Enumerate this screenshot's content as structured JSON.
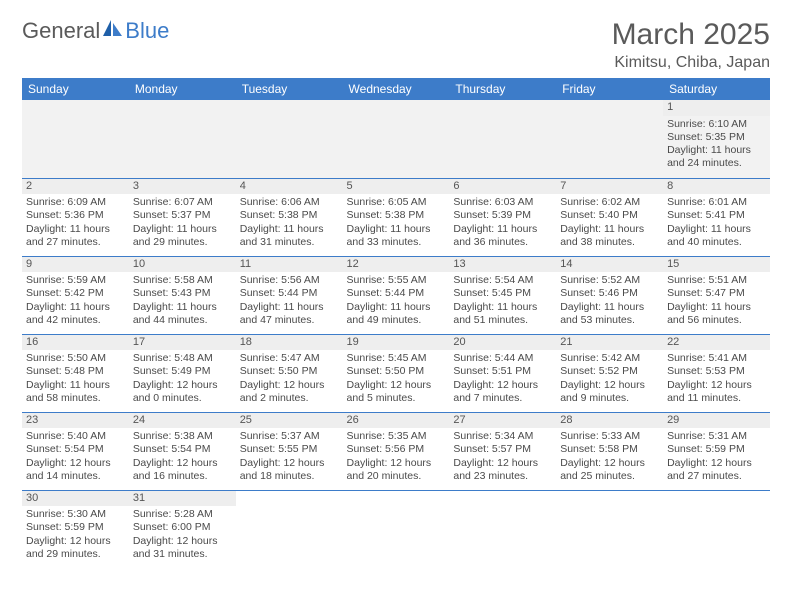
{
  "brand": {
    "word1": "General",
    "word2": "Blue",
    "sail_color": "#1f5fa8"
  },
  "title": "March 2025",
  "location": "Kimitsu, Chiba, Japan",
  "colors": {
    "header_bg": "#3d7cc9",
    "header_fg": "#ffffff",
    "rule": "#3d7cc9",
    "daynum_bg": "#eeeeee",
    "text": "#4a4a4a"
  },
  "weekdays": [
    "Sunday",
    "Monday",
    "Tuesday",
    "Wednesday",
    "Thursday",
    "Friday",
    "Saturday"
  ],
  "first_weekday_index": 6,
  "days": [
    {
      "n": 1,
      "sunrise": "6:10 AM",
      "sunset": "5:35 PM",
      "dl_h": 11,
      "dl_m": 24
    },
    {
      "n": 2,
      "sunrise": "6:09 AM",
      "sunset": "5:36 PM",
      "dl_h": 11,
      "dl_m": 27
    },
    {
      "n": 3,
      "sunrise": "6:07 AM",
      "sunset": "5:37 PM",
      "dl_h": 11,
      "dl_m": 29
    },
    {
      "n": 4,
      "sunrise": "6:06 AM",
      "sunset": "5:38 PM",
      "dl_h": 11,
      "dl_m": 31
    },
    {
      "n": 5,
      "sunrise": "6:05 AM",
      "sunset": "5:38 PM",
      "dl_h": 11,
      "dl_m": 33
    },
    {
      "n": 6,
      "sunrise": "6:03 AM",
      "sunset": "5:39 PM",
      "dl_h": 11,
      "dl_m": 36
    },
    {
      "n": 7,
      "sunrise": "6:02 AM",
      "sunset": "5:40 PM",
      "dl_h": 11,
      "dl_m": 38
    },
    {
      "n": 8,
      "sunrise": "6:01 AM",
      "sunset": "5:41 PM",
      "dl_h": 11,
      "dl_m": 40
    },
    {
      "n": 9,
      "sunrise": "5:59 AM",
      "sunset": "5:42 PM",
      "dl_h": 11,
      "dl_m": 42
    },
    {
      "n": 10,
      "sunrise": "5:58 AM",
      "sunset": "5:43 PM",
      "dl_h": 11,
      "dl_m": 44
    },
    {
      "n": 11,
      "sunrise": "5:56 AM",
      "sunset": "5:44 PM",
      "dl_h": 11,
      "dl_m": 47
    },
    {
      "n": 12,
      "sunrise": "5:55 AM",
      "sunset": "5:44 PM",
      "dl_h": 11,
      "dl_m": 49
    },
    {
      "n": 13,
      "sunrise": "5:54 AM",
      "sunset": "5:45 PM",
      "dl_h": 11,
      "dl_m": 51
    },
    {
      "n": 14,
      "sunrise": "5:52 AM",
      "sunset": "5:46 PM",
      "dl_h": 11,
      "dl_m": 53
    },
    {
      "n": 15,
      "sunrise": "5:51 AM",
      "sunset": "5:47 PM",
      "dl_h": 11,
      "dl_m": 56
    },
    {
      "n": 16,
      "sunrise": "5:50 AM",
      "sunset": "5:48 PM",
      "dl_h": 11,
      "dl_m": 58
    },
    {
      "n": 17,
      "sunrise": "5:48 AM",
      "sunset": "5:49 PM",
      "dl_h": 12,
      "dl_m": 0
    },
    {
      "n": 18,
      "sunrise": "5:47 AM",
      "sunset": "5:50 PM",
      "dl_h": 12,
      "dl_m": 2
    },
    {
      "n": 19,
      "sunrise": "5:45 AM",
      "sunset": "5:50 PM",
      "dl_h": 12,
      "dl_m": 5
    },
    {
      "n": 20,
      "sunrise": "5:44 AM",
      "sunset": "5:51 PM",
      "dl_h": 12,
      "dl_m": 7
    },
    {
      "n": 21,
      "sunrise": "5:42 AM",
      "sunset": "5:52 PM",
      "dl_h": 12,
      "dl_m": 9
    },
    {
      "n": 22,
      "sunrise": "5:41 AM",
      "sunset": "5:53 PM",
      "dl_h": 12,
      "dl_m": 11
    },
    {
      "n": 23,
      "sunrise": "5:40 AM",
      "sunset": "5:54 PM",
      "dl_h": 12,
      "dl_m": 14
    },
    {
      "n": 24,
      "sunrise": "5:38 AM",
      "sunset": "5:54 PM",
      "dl_h": 12,
      "dl_m": 16
    },
    {
      "n": 25,
      "sunrise": "5:37 AM",
      "sunset": "5:55 PM",
      "dl_h": 12,
      "dl_m": 18
    },
    {
      "n": 26,
      "sunrise": "5:35 AM",
      "sunset": "5:56 PM",
      "dl_h": 12,
      "dl_m": 20
    },
    {
      "n": 27,
      "sunrise": "5:34 AM",
      "sunset": "5:57 PM",
      "dl_h": 12,
      "dl_m": 23
    },
    {
      "n": 28,
      "sunrise": "5:33 AM",
      "sunset": "5:58 PM",
      "dl_h": 12,
      "dl_m": 25
    },
    {
      "n": 29,
      "sunrise": "5:31 AM",
      "sunset": "5:59 PM",
      "dl_h": 12,
      "dl_m": 27
    },
    {
      "n": 30,
      "sunrise": "5:30 AM",
      "sunset": "5:59 PM",
      "dl_h": 12,
      "dl_m": 29
    },
    {
      "n": 31,
      "sunrise": "5:28 AM",
      "sunset": "6:00 PM",
      "dl_h": 12,
      "dl_m": 31
    }
  ],
  "labels": {
    "sunrise": "Sunrise:",
    "sunset": "Sunset:",
    "daylight": "Daylight:",
    "hours": "hours",
    "and": "and",
    "minutes": "minutes."
  }
}
